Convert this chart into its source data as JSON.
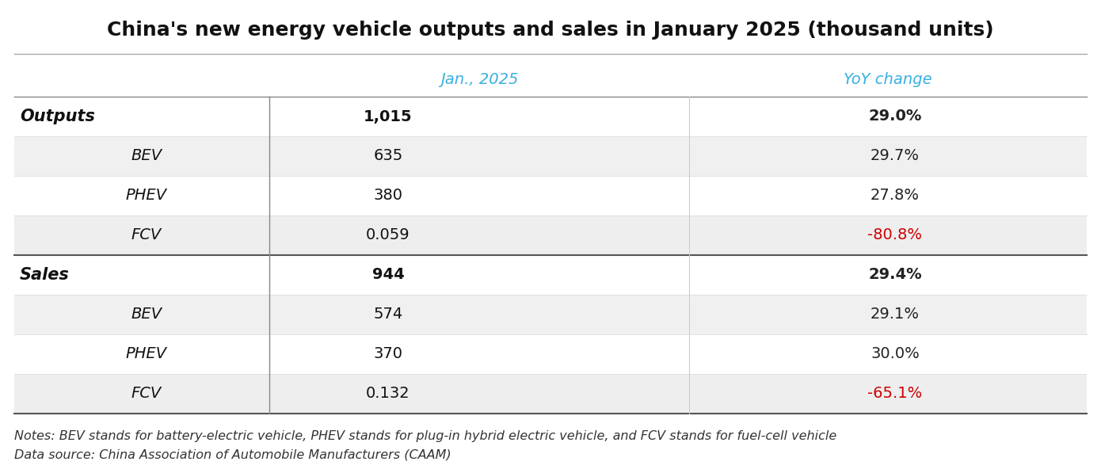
{
  "title": "China's new energy vehicle outputs and sales in January 2025 (thousand units)",
  "header_jan": "Jan., 2025",
  "header_yoy": "YoY change",
  "header_jan_color": "#3ab0e0",
  "header_yoy_color": "#3ab0e0",
  "rows": [
    {
      "label": "Outputs",
      "indent": 0,
      "bold": true,
      "italic": true,
      "value": "1,015",
      "yoy": "29.0%",
      "yoy_color": "#222222",
      "bg": "#ffffff"
    },
    {
      "label": "BEV",
      "indent": 1,
      "bold": false,
      "italic": true,
      "value": "635",
      "yoy": "29.7%",
      "yoy_color": "#222222",
      "bg": "#f0f0f0"
    },
    {
      "label": "PHEV",
      "indent": 1,
      "bold": false,
      "italic": true,
      "value": "380",
      "yoy": "27.8%",
      "yoy_color": "#222222",
      "bg": "#ffffff"
    },
    {
      "label": "FCV",
      "indent": 1,
      "bold": false,
      "italic": true,
      "value": "0.059",
      "yoy": "-80.8%",
      "yoy_color": "#cc0000",
      "bg": "#eeeeee"
    },
    {
      "label": "Sales",
      "indent": 0,
      "bold": true,
      "italic": true,
      "value": "944",
      "yoy": "29.4%",
      "yoy_color": "#222222",
      "bg": "#ffffff"
    },
    {
      "label": "BEV",
      "indent": 1,
      "bold": false,
      "italic": true,
      "value": "574",
      "yoy": "29.1%",
      "yoy_color": "#222222",
      "bg": "#f0f0f0"
    },
    {
      "label": "PHEV",
      "indent": 1,
      "bold": false,
      "italic": true,
      "value": "370",
      "yoy": "30.0%",
      "yoy_color": "#222222",
      "bg": "#ffffff"
    },
    {
      "label": "FCV",
      "indent": 1,
      "bold": false,
      "italic": true,
      "value": "0.132",
      "yoy": "-65.1%",
      "yoy_color": "#cc0000",
      "bg": "#eeeeee"
    }
  ],
  "notes": "Notes: BEV stands for battery-electric vehicle, PHEV stands for plug-in hybrid electric vehicle, and FCV stands for fuel-cell vehicle",
  "source": "Data source: China Association of Automobile Manufacturers (CAAM)",
  "bg_color": "#ffffff",
  "title_fontsize": 18,
  "header_fontsize": 14,
  "cell_fontsize": 14,
  "notes_fontsize": 11.5
}
